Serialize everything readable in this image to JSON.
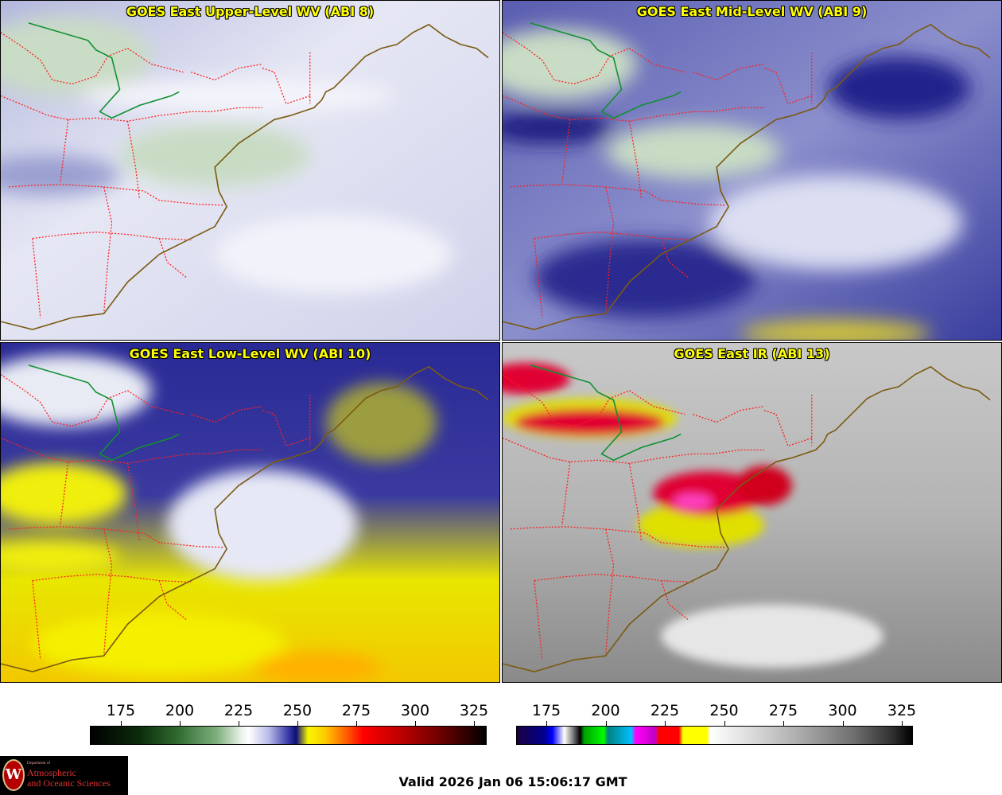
{
  "panels": [
    {
      "title": "GOES East Upper-Level WV (ABI 8)"
    },
    {
      "title": "GOES East Mid-Level WV (ABI 9)"
    },
    {
      "title": "GOES East Low-Level WV (ABI 10)"
    },
    {
      "title": "GOES East IR (ABI 13)"
    }
  ],
  "colorbar_wv": {
    "ticks": [
      "175",
      "200",
      "225",
      "250",
      "275",
      "300",
      "325"
    ]
  },
  "colorbar_ir": {
    "ticks": [
      "175",
      "200",
      "225",
      "250",
      "275",
      "300",
      "325"
    ]
  },
  "logo": {
    "dept": "Department of",
    "line1": "Atmospheric",
    "line2": "and Oceanic Sciences",
    "seal_letter": "W"
  },
  "valid_time": "Valid 2026 Jan 06 15:06:17 GMT",
  "colors": {
    "title_text": "#ffff00",
    "state_border": "#ff2020",
    "coastline": "#7a5a10",
    "canada_border": "#109030"
  }
}
